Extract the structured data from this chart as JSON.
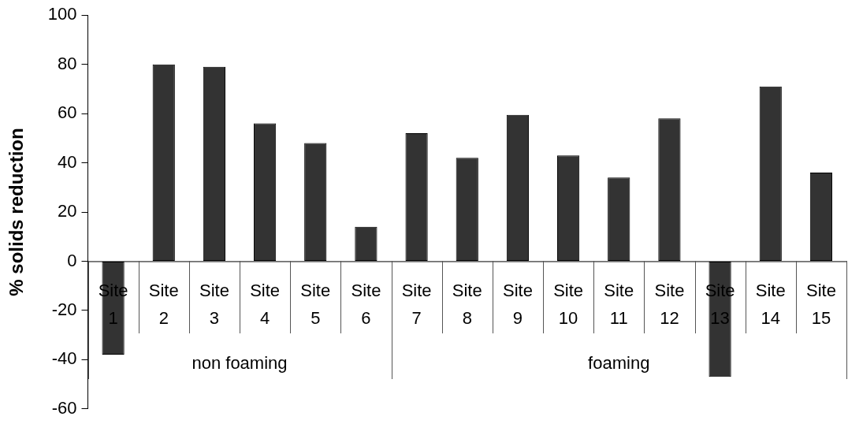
{
  "chart_data": {
    "type": "bar",
    "ylabel": "% solids reduction",
    "categories": [
      "Site 1",
      "Site 2",
      "Site 3",
      "Site 4",
      "Site 5",
      "Site 6",
      "Site 7",
      "Site 8",
      "Site 9",
      "Site 10",
      "Site 11",
      "Site 12",
      "Site 13",
      "Site 14",
      "Site 15"
    ],
    "values": [
      -38,
      80,
      79,
      56,
      48,
      14,
      52,
      42,
      59.5,
      43,
      34,
      58,
      -47,
      71,
      36
    ],
    "color": "#333333",
    "ylim": [
      -60,
      100
    ],
    "yticks": [
      -60,
      -40,
      -20,
      0,
      20,
      40,
      60,
      80,
      100
    ],
    "grid": false,
    "legend": false,
    "annotations": [
      "non foaming",
      "foaming"
    ]
  }
}
